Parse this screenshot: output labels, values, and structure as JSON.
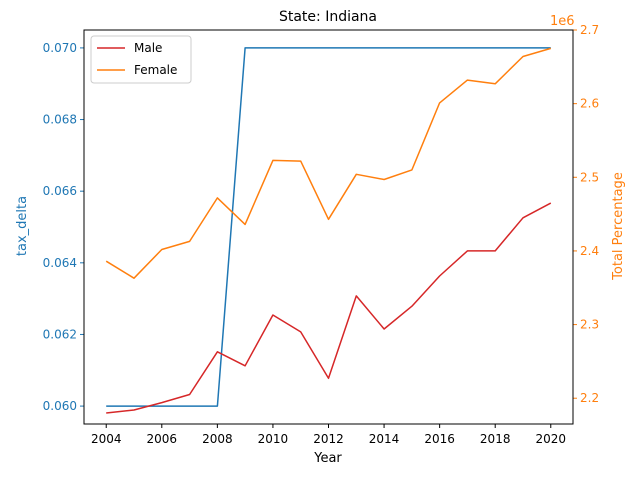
{
  "chart_data": {
    "type": "line",
    "title": "State: Indiana",
    "xlabel": "Year",
    "ylabel_left": "tax_delta",
    "ylabel_right": "Total Percentage",
    "right_offset_label": "1e6",
    "x": [
      2004,
      2005,
      2006,
      2007,
      2008,
      2009,
      2010,
      2011,
      2012,
      2013,
      2014,
      2015,
      2016,
      2017,
      2018,
      2019,
      2020
    ],
    "xlim": [
      2003.2,
      2020.8
    ],
    "xticks": [
      2004,
      2006,
      2008,
      2010,
      2012,
      2014,
      2016,
      2018,
      2020
    ],
    "left_axis": {
      "ylim": [
        0.0595,
        0.0705
      ],
      "ticks": [
        0.06,
        0.062,
        0.064,
        0.066,
        0.068,
        0.07
      ],
      "tick_labels": [
        "0.060",
        "0.062",
        "0.064",
        "0.066",
        "0.068",
        "0.070"
      ],
      "color": "#1f77b4",
      "series": {
        "name": "",
        "color": "#1f77b4",
        "values": [
          0.06,
          0.06,
          0.06,
          0.06,
          0.06,
          0.07,
          0.07,
          0.07,
          0.07,
          0.07,
          0.07,
          0.07,
          0.07,
          0.07,
          0.07,
          0.07,
          0.07
        ]
      }
    },
    "right_axis": {
      "ylim": [
        2.165,
        2.7
      ],
      "ticks": [
        2.2,
        2.3,
        2.4,
        2.5,
        2.6,
        2.7
      ],
      "tick_labels": [
        "2.2",
        "2.3",
        "2.4",
        "2.5",
        "2.6",
        "2.7"
      ],
      "color": "#ff7f0e",
      "series": [
        {
          "name": "Male",
          "color": "#d62728",
          "values": [
            2.18,
            2.184,
            2.194,
            2.205,
            2.263,
            2.244,
            2.313,
            2.29,
            2.227,
            2.339,
            2.294,
            2.325,
            2.366,
            2.4,
            2.4,
            2.445,
            2.465
          ]
        },
        {
          "name": "Female",
          "color": "#ff7f0e",
          "values": [
            2.386,
            2.363,
            2.402,
            2.413,
            2.472,
            2.436,
            2.523,
            2.522,
            2.443,
            2.504,
            2.497,
            2.51,
            2.601,
            2.632,
            2.627,
            2.664,
            2.675
          ]
        }
      ]
    },
    "legend": {
      "position": "top-left"
    },
    "grid": false
  }
}
